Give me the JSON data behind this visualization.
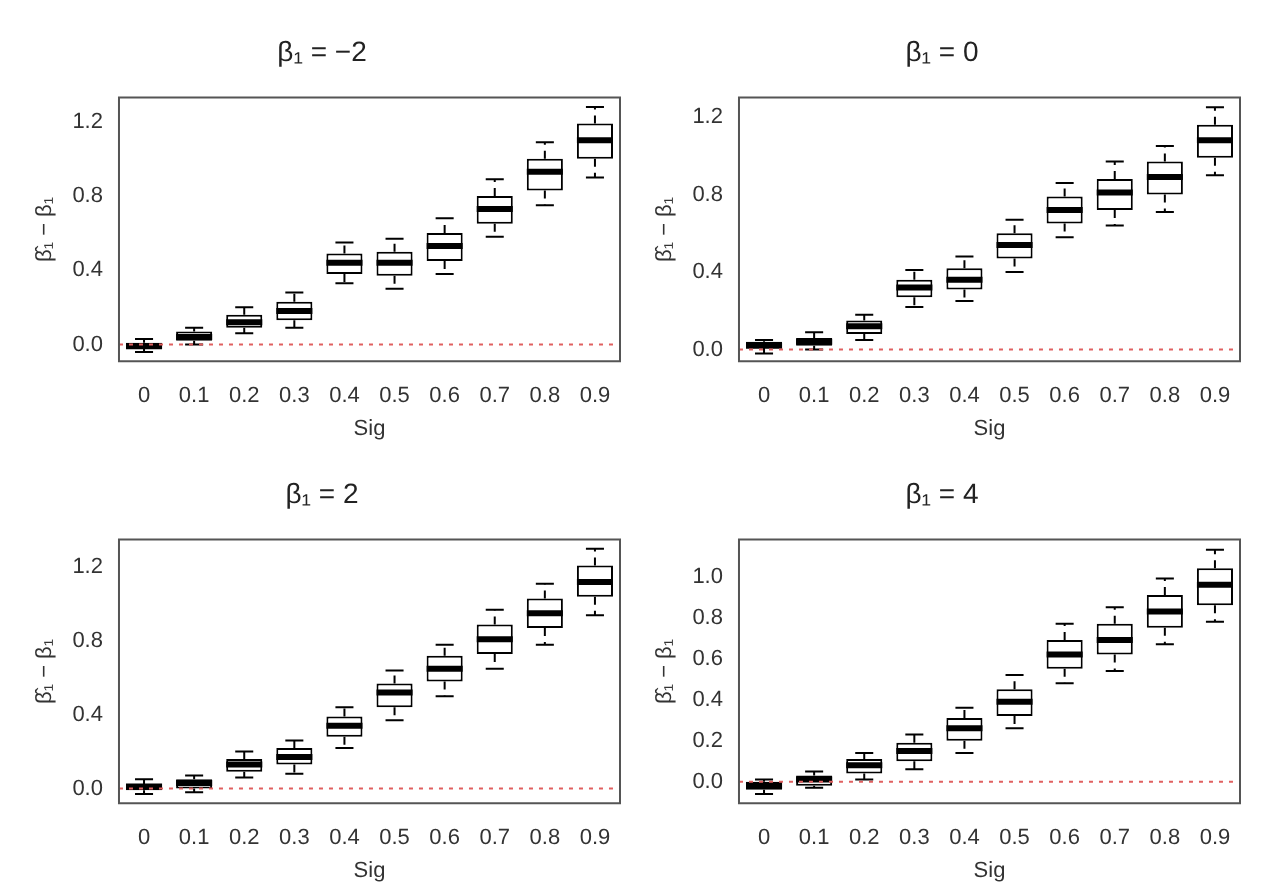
{
  "chart_data": [
    {
      "type": "box",
      "title": "β₁ = −2",
      "xlabel": "Sig",
      "ylabel": "β̂₁ − β₁",
      "categories": [
        "0",
        "0.1",
        "0.2",
        "0.3",
        "0.4",
        "0.5",
        "0.6",
        "0.7",
        "0.8",
        "0.9"
      ],
      "boxes": [
        {
          "low": -0.04,
          "q1": -0.02,
          "median": -0.01,
          "q3": 0.01,
          "high": 0.03
        },
        {
          "low": 0.0,
          "q1": 0.02,
          "median": 0.04,
          "q3": 0.07,
          "high": 0.09
        },
        {
          "low": 0.06,
          "q1": 0.09,
          "median": 0.12,
          "q3": 0.16,
          "high": 0.2
        },
        {
          "low": 0.09,
          "q1": 0.13,
          "median": 0.18,
          "q3": 0.23,
          "high": 0.28
        },
        {
          "low": 0.33,
          "q1": 0.38,
          "median": 0.44,
          "q3": 0.49,
          "high": 0.55
        },
        {
          "low": 0.3,
          "q1": 0.37,
          "median": 0.44,
          "q3": 0.5,
          "high": 0.57
        },
        {
          "low": 0.38,
          "q1": 0.45,
          "median": 0.53,
          "q3": 0.6,
          "high": 0.68
        },
        {
          "low": 0.58,
          "q1": 0.65,
          "median": 0.73,
          "q3": 0.8,
          "high": 0.89
        },
        {
          "low": 0.75,
          "q1": 0.83,
          "median": 0.93,
          "q3": 1.0,
          "high": 1.09
        },
        {
          "low": 0.9,
          "q1": 1.0,
          "median": 1.1,
          "q3": 1.19,
          "high": 1.28
        }
      ],
      "ylim": [
        -0.09,
        1.33
      ],
      "yticks": [
        {
          "value": 0,
          "label": "0.0"
        },
        {
          "value": 0.4,
          "label": "0.4"
        },
        {
          "value": 0.8,
          "label": "0.8"
        },
        {
          "value": 1.2,
          "label": "1.2"
        }
      ],
      "ref_lines": [
        {
          "axis": "y",
          "value": 0,
          "color": "#e06060",
          "line_style": "dotted"
        }
      ]
    },
    {
      "type": "box",
      "title": "β₁ = 0",
      "xlabel": "Sig",
      "ylabel": "β̂₁ − β₁",
      "categories": [
        "0",
        "0.1",
        "0.2",
        "0.3",
        "0.4",
        "0.5",
        "0.6",
        "0.7",
        "0.8",
        "0.9"
      ],
      "boxes": [
        {
          "low": -0.02,
          "q1": 0.01,
          "median": 0.02,
          "q3": 0.04,
          "high": 0.05
        },
        {
          "low": 0.0,
          "q1": 0.02,
          "median": 0.04,
          "q3": 0.06,
          "high": 0.09
        },
        {
          "low": 0.05,
          "q1": 0.08,
          "median": 0.12,
          "q3": 0.15,
          "high": 0.18
        },
        {
          "low": 0.22,
          "q1": 0.27,
          "median": 0.32,
          "q3": 0.36,
          "high": 0.41
        },
        {
          "low": 0.25,
          "q1": 0.31,
          "median": 0.36,
          "q3": 0.42,
          "high": 0.48
        },
        {
          "low": 0.4,
          "q1": 0.47,
          "median": 0.54,
          "q3": 0.6,
          "high": 0.67
        },
        {
          "low": 0.58,
          "q1": 0.65,
          "median": 0.72,
          "q3": 0.79,
          "high": 0.86
        },
        {
          "low": 0.64,
          "q1": 0.72,
          "median": 0.81,
          "q3": 0.88,
          "high": 0.97
        },
        {
          "low": 0.71,
          "q1": 0.8,
          "median": 0.89,
          "q3": 0.97,
          "high": 1.05
        },
        {
          "low": 0.9,
          "q1": 0.99,
          "median": 1.08,
          "q3": 1.16,
          "high": 1.25
        }
      ],
      "ylim": [
        -0.06,
        1.3
      ],
      "yticks": [
        {
          "value": 0,
          "label": "0.0"
        },
        {
          "value": 0.4,
          "label": "0.4"
        },
        {
          "value": 0.8,
          "label": "0.8"
        },
        {
          "value": 1.2,
          "label": "1.2"
        }
      ],
      "ref_lines": [
        {
          "axis": "y",
          "value": 0,
          "color": "#e06060",
          "line_style": "dotted"
        }
      ]
    },
    {
      "type": "box",
      "title": "β₁ = 2",
      "xlabel": "Sig",
      "ylabel": "β̂₁ − β₁",
      "categories": [
        "0",
        "0.1",
        "0.2",
        "0.3",
        "0.4",
        "0.5",
        "0.6",
        "0.7",
        "0.8",
        "0.9"
      ],
      "boxes": [
        {
          "low": -0.03,
          "q1": -0.01,
          "median": 0.01,
          "q3": 0.02,
          "high": 0.05
        },
        {
          "low": -0.02,
          "q1": 0.0,
          "median": 0.03,
          "q3": 0.05,
          "high": 0.07
        },
        {
          "low": 0.06,
          "q1": 0.09,
          "median": 0.13,
          "q3": 0.16,
          "high": 0.2
        },
        {
          "low": 0.08,
          "q1": 0.13,
          "median": 0.17,
          "q3": 0.22,
          "high": 0.26
        },
        {
          "low": 0.22,
          "q1": 0.28,
          "median": 0.34,
          "q3": 0.39,
          "high": 0.44
        },
        {
          "low": 0.37,
          "q1": 0.44,
          "median": 0.52,
          "q3": 0.57,
          "high": 0.64
        },
        {
          "low": 0.5,
          "q1": 0.58,
          "median": 0.65,
          "q3": 0.72,
          "high": 0.78
        },
        {
          "low": 0.65,
          "q1": 0.73,
          "median": 0.81,
          "q3": 0.89,
          "high": 0.97
        },
        {
          "low": 0.78,
          "q1": 0.87,
          "median": 0.95,
          "q3": 1.03,
          "high": 1.11
        },
        {
          "low": 0.94,
          "q1": 1.04,
          "median": 1.12,
          "q3": 1.21,
          "high": 1.3
        }
      ],
      "ylim": [
        -0.08,
        1.35
      ],
      "yticks": [
        {
          "value": 0,
          "label": "0.0"
        },
        {
          "value": 0.4,
          "label": "0.4"
        },
        {
          "value": 0.8,
          "label": "0.8"
        },
        {
          "value": 1.2,
          "label": "1.2"
        }
      ],
      "ref_lines": [
        {
          "axis": "y",
          "value": 0,
          "color": "#e06060",
          "line_style": "dotted"
        }
      ]
    },
    {
      "type": "box",
      "title": "β₁ = 4",
      "xlabel": "Sig",
      "ylabel": "β̂₁ − β₁",
      "categories": [
        "0",
        "0.1",
        "0.2",
        "0.3",
        "0.4",
        "0.5",
        "0.6",
        "0.7",
        "0.8",
        "0.9"
      ],
      "boxes": [
        {
          "low": -0.06,
          "q1": -0.04,
          "median": -0.02,
          "q3": 0.0,
          "high": 0.01
        },
        {
          "low": -0.03,
          "q1": -0.02,
          "median": 0.01,
          "q3": 0.03,
          "high": 0.05
        },
        {
          "low": 0.01,
          "q1": 0.04,
          "median": 0.08,
          "q3": 0.11,
          "high": 0.14
        },
        {
          "low": 0.06,
          "q1": 0.1,
          "median": 0.15,
          "q3": 0.19,
          "high": 0.23
        },
        {
          "low": 0.14,
          "q1": 0.2,
          "median": 0.26,
          "q3": 0.31,
          "high": 0.36
        },
        {
          "low": 0.26,
          "q1": 0.32,
          "median": 0.39,
          "q3": 0.45,
          "high": 0.52
        },
        {
          "low": 0.48,
          "q1": 0.55,
          "median": 0.62,
          "q3": 0.69,
          "high": 0.77
        },
        {
          "low": 0.54,
          "q1": 0.62,
          "median": 0.69,
          "q3": 0.77,
          "high": 0.85
        },
        {
          "low": 0.67,
          "q1": 0.75,
          "median": 0.83,
          "q3": 0.91,
          "high": 0.99
        },
        {
          "low": 0.78,
          "q1": 0.86,
          "median": 0.96,
          "q3": 1.04,
          "high": 1.13
        }
      ],
      "ylim": [
        -0.105,
        1.18
      ],
      "yticks": [
        {
          "value": 0,
          "label": "0.0"
        },
        {
          "value": 0.2,
          "label": "0.2"
        },
        {
          "value": 0.4,
          "label": "0.4"
        },
        {
          "value": 0.6,
          "label": "0.6"
        },
        {
          "value": 0.8,
          "label": "0.8"
        },
        {
          "value": 1.0,
          "label": "1.0"
        }
      ],
      "ref_lines": [
        {
          "axis": "y",
          "value": 0,
          "color": "#e06060",
          "line_style": "dotted"
        }
      ]
    }
  ]
}
